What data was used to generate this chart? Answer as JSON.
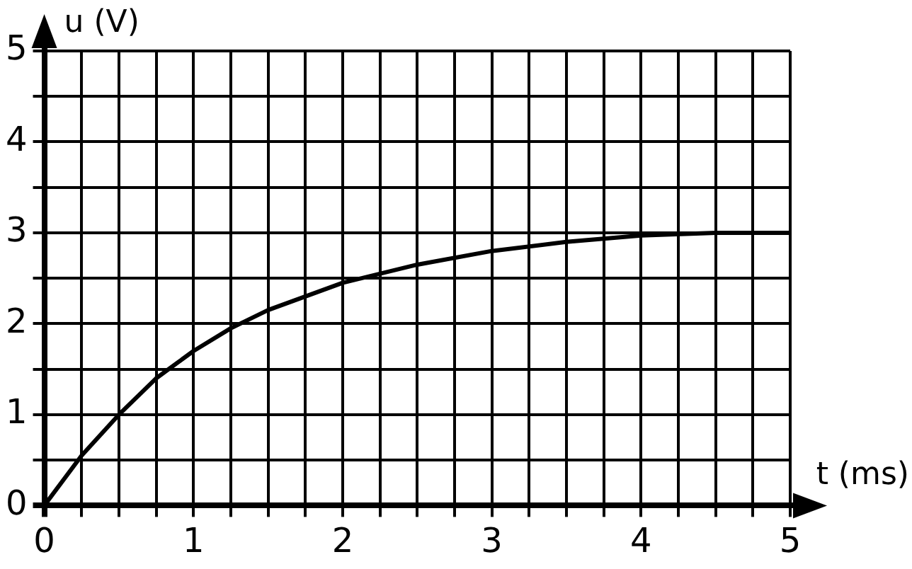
{
  "chart_data": {
    "type": "line",
    "xlabel": "t (ms)",
    "ylabel": "u (V)",
    "x": [
      0,
      0.25,
      0.5,
      0.75,
      1,
      1.25,
      1.5,
      1.75,
      2,
      2.5,
      3,
      3.5,
      4,
      4.5,
      5
    ],
    "series": [
      {
        "color": "#000000",
        "values": [
          0,
          0.55,
          1,
          1.4,
          1.7,
          1.95,
          2.15,
          2.3,
          2.45,
          2.65,
          2.8,
          2.9,
          2.97,
          3,
          3
        ]
      }
    ],
    "xlim": [
      0,
      5
    ],
    "ylim": [
      0,
      5
    ],
    "xticks": [
      0,
      {
        "value": 0.25,
        "label": null
      },
      {
        "value": 0.5,
        "label": null
      },
      {
        "value": 0.75,
        "label": null
      },
      1,
      {
        "value": 1.25,
        "label": null
      },
      {
        "value": 1.5,
        "label": null
      },
      {
        "value": 1.75,
        "label": null
      },
      2,
      {
        "value": 2.25,
        "label": null
      },
      {
        "value": 2.5,
        "label": null
      },
      {
        "value": 2.75,
        "label": null
      },
      3,
      {
        "value": 3.25,
        "label": null
      },
      {
        "value": 3.5,
        "label": null
      },
      {
        "value": 3.75,
        "label": null
      },
      4,
      {
        "value": 4.25,
        "label": null
      },
      {
        "value": 4.5,
        "label": null
      },
      {
        "value": 4.75,
        "label": null
      },
      5
    ],
    "yticks": [
      0,
      {
        "value": 0.5,
        "label": null
      },
      1,
      {
        "value": 1.5,
        "label": null
      },
      2,
      {
        "value": 2.5,
        "label": null
      },
      3,
      {
        "value": 3.5,
        "label": null
      },
      4,
      {
        "value": 4.5,
        "label": null
      },
      5
    ],
    "grid": true,
    "marker": "none",
    "line_style": "solid",
    "legend": false
  }
}
